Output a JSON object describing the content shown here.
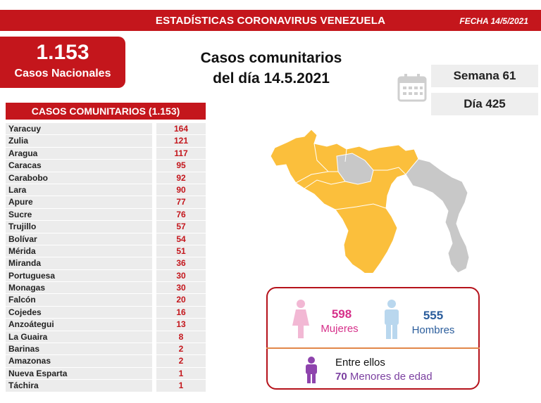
{
  "header": {
    "title": "ESTADÍSTICAS CORONAVIRUS VENEZUELA",
    "date": "FECHA 14/5/2021"
  },
  "national": {
    "total": "1.153",
    "label": "Casos Nacionales"
  },
  "headline": {
    "line1": "Casos comunitarios",
    "line2": "del día 14.5.2021"
  },
  "week": "Semana 61",
  "day": "Día 425",
  "table": {
    "title": "CASOS COMUNITARIOS (1.153)",
    "rows": [
      {
        "state": "Yaracuy",
        "cases": "164"
      },
      {
        "state": "Zulia",
        "cases": "121"
      },
      {
        "state": "Aragua",
        "cases": "117"
      },
      {
        "state": "Caracas",
        "cases": "95"
      },
      {
        "state": "Carabobo",
        "cases": "92"
      },
      {
        "state": "Lara",
        "cases": "90"
      },
      {
        "state": "Apure",
        "cases": "77"
      },
      {
        "state": "Sucre",
        "cases": "76"
      },
      {
        "state": "Trujillo",
        "cases": "57"
      },
      {
        "state": "Bolívar",
        "cases": "54"
      },
      {
        "state": "Mérida",
        "cases": "51"
      },
      {
        "state": "Miranda",
        "cases": "36"
      },
      {
        "state": "Portuguesa",
        "cases": "30"
      },
      {
        "state": "Monagas",
        "cases": "30"
      },
      {
        "state": "Falcón",
        "cases": "20"
      },
      {
        "state": "Cojedes",
        "cases": "16"
      },
      {
        "state": "Anzoátegui",
        "cases": "13"
      },
      {
        "state": "La Guaira",
        "cases": "8"
      },
      {
        "state": "Barinas",
        "cases": "2"
      },
      {
        "state": "Amazonas",
        "cases": "2"
      },
      {
        "state": "Nueva Esparta",
        "cases": "1"
      },
      {
        "state": "Táchira",
        "cases": "1"
      }
    ]
  },
  "gender": {
    "women_count": "598",
    "women_label": "Mujeres",
    "men_count": "555",
    "men_label": "Hombres",
    "among": "Entre ellos",
    "minors_count": "70",
    "minors_label": "Menores de edad"
  },
  "colors": {
    "brand_red": "#c4161c",
    "map_affected": "#fbbf3c",
    "map_unaffected": "#c8c8c8",
    "women": "#d6308a",
    "men": "#2b5d9c",
    "minors": "#7b3fa0"
  }
}
